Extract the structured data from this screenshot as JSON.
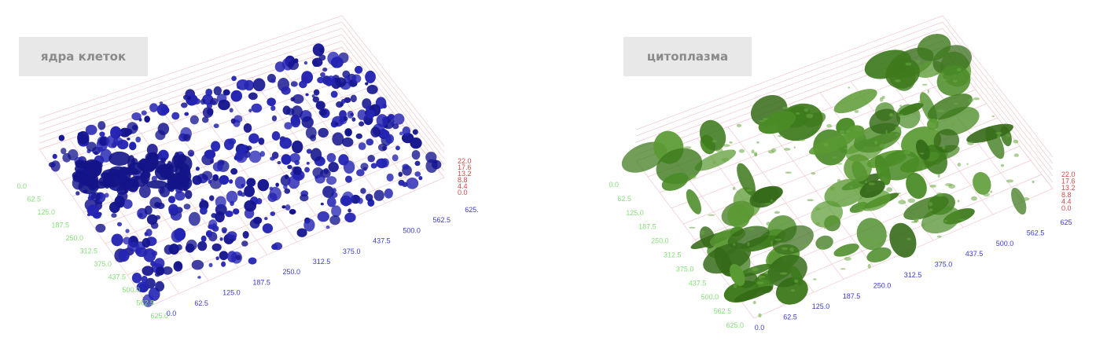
{
  "panels": [
    {
      "title": "ядра клеток",
      "color": "#1a1a9e",
      "x_ticks": [
        "0.0",
        "62.5",
        "125.0",
        "187.5",
        "250.0",
        "312.5",
        "375.0",
        "437.5",
        "500.0",
        "562.5",
        "625.0"
      ],
      "y_ticks": [
        "0.0",
        "62.5",
        "125.0",
        "187.5",
        "250.0",
        "312.5",
        "375.0",
        "437.5",
        "500.0",
        "562.5",
        "625."
      ],
      "z_ticks": [
        "0.0",
        "4.4",
        "8.8",
        "13.2",
        "17.6",
        "22.0"
      ]
    },
    {
      "title": "цитоплазма",
      "color": "#3f7d1f",
      "x_ticks": [
        "0.0",
        "62.5",
        "125.0",
        "187.5",
        "250.0",
        "312.5",
        "375.0",
        "437.5",
        "500.0",
        "562.5",
        "625.0"
      ],
      "y_ticks": [
        "0.0",
        "62.5",
        "125.0",
        "187.5",
        "250.0",
        "312.5",
        "375.0",
        "437.5",
        "500.0",
        "562.5",
        "625"
      ],
      "z_ticks": [
        "0.0",
        "4.4",
        "8.8",
        "13.2",
        "17.6",
        "22.0"
      ]
    }
  ],
  "axis_colors": {
    "x": "#86e07a",
    "y": "#3b3bcf",
    "z": "#d04a4a"
  },
  "icons": [
    "nuclei-3d-render",
    "cytoplasm-3d-render"
  ]
}
